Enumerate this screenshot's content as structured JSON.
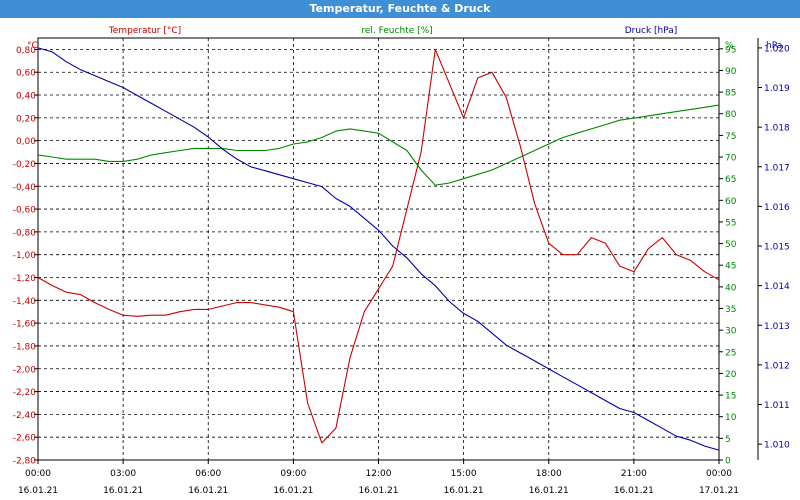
{
  "window": {
    "title": "Temperatur, Feuchte & Druck"
  },
  "chart_data": {
    "type": "line",
    "title": "Temperatur, Feuchte & Druck",
    "grid": true,
    "x_ticks": [
      {
        "time": "00:00",
        "date": "16.01.21"
      },
      {
        "time": "03:00",
        "date": "16.01.21"
      },
      {
        "time": "06:00",
        "date": "16.01.21"
      },
      {
        "time": "09:00",
        "date": "16.01.21"
      },
      {
        "time": "12:00",
        "date": "16.01.21"
      },
      {
        "time": "15:00",
        "date": "16.01.21"
      },
      {
        "time": "18:00",
        "date": "16.01.21"
      },
      {
        "time": "21:00",
        "date": "16.01.21"
      },
      {
        "time": "00:00",
        "date": "17.01.21"
      }
    ],
    "x_hours": [
      0,
      0.5,
      1,
      1.5,
      2,
      2.5,
      3,
      3.5,
      4,
      4.5,
      5,
      5.5,
      6,
      6.5,
      7,
      7.5,
      8,
      8.5,
      9,
      9.5,
      10,
      10.5,
      11,
      11.5,
      12,
      12.5,
      13,
      13.5,
      14,
      14.5,
      15,
      15.5,
      16,
      16.5,
      17,
      17.5,
      18,
      18.5,
      19,
      19.5,
      20,
      20.5,
      21,
      21.5,
      22,
      22.5,
      23,
      23.5,
      24
    ],
    "axes": {
      "temperature": {
        "label": "°C",
        "min": -2.8,
        "max": 0.9,
        "color": "#cc0000",
        "ticks": [
          "0,80",
          "0,60",
          "0,40",
          "0,20",
          "0,00",
          "-0,20",
          "-0,40",
          "-0,60",
          "-0,80",
          "-1,00",
          "-1,20",
          "-1,40",
          "-1,60",
          "-1,80",
          "-2,00",
          "-2,20",
          "-2,40",
          "-2,60",
          "-2,80"
        ],
        "tick_values": [
          0.8,
          0.6,
          0.4,
          0.2,
          0,
          -0.2,
          -0.4,
          -0.6,
          -0.8,
          -1.0,
          -1.2,
          -1.4,
          -1.6,
          -1.8,
          -2.0,
          -2.2,
          -2.4,
          -2.6,
          -2.8
        ]
      },
      "humidity": {
        "label": "%",
        "min": 0,
        "max": 97.5,
        "color": "#008800",
        "ticks": [
          "95",
          "90",
          "85",
          "80",
          "75",
          "70",
          "65",
          "60",
          "55",
          "50",
          "45",
          "40",
          "35",
          "30",
          "25",
          "20",
          "15",
          "10",
          "5",
          "0"
        ],
        "tick_values": [
          95,
          90,
          85,
          80,
          75,
          70,
          65,
          60,
          55,
          50,
          45,
          40,
          35,
          30,
          25,
          20,
          15,
          10,
          5,
          0
        ]
      },
      "pressure": {
        "label": "hPa",
        "min": 1009.6,
        "max": 1020.25,
        "color": "#0000aa",
        "ticks": [
          "1.020",
          "1.019",
          "1.018",
          "1.017",
          "1.016",
          "1.015",
          "1.014",
          "1.013",
          "1.012",
          "1.011",
          "1.010"
        ],
        "tick_values": [
          1020,
          1019,
          1018,
          1017,
          1016,
          1015,
          1014,
          1013,
          1012,
          1011,
          1010
        ]
      }
    },
    "series": [
      {
        "name": "Temperatur [°C]",
        "axis": "temperature",
        "color": "#cc0000",
        "values": [
          -1.2,
          -1.27,
          -1.33,
          -1.35,
          -1.42,
          -1.48,
          -1.53,
          -1.54,
          -1.53,
          -1.53,
          -1.5,
          -1.48,
          -1.48,
          -1.45,
          -1.42,
          -1.42,
          -1.44,
          -1.46,
          -1.5,
          -2.3,
          -2.65,
          -2.52,
          -1.9,
          -1.5,
          -1.3,
          -1.1,
          -0.6,
          -0.1,
          0.8,
          0.5,
          0.2,
          0.55,
          0.6,
          0.38,
          -0.05,
          -0.55,
          -0.9,
          -1.0,
          -1.0,
          -0.85,
          -0.9,
          -1.1,
          -1.15,
          -0.95,
          -0.85,
          -1.0,
          -1.05,
          -1.15,
          -1.22
        ]
      },
      {
        "name": "rel. Feuchte [%]",
        "axis": "humidity",
        "color": "#008800",
        "values": [
          70.5,
          70,
          69.5,
          69.5,
          69.5,
          69,
          69,
          69.5,
          70.5,
          71,
          71.5,
          72,
          72,
          72,
          71.5,
          71.5,
          71.5,
          72,
          73,
          73.5,
          74.5,
          76,
          76.5,
          76,
          75.5,
          73.5,
          71.5,
          67,
          63.5,
          64,
          65,
          66,
          67,
          68.5,
          70,
          71.5,
          73,
          74.5,
          75.5,
          76.5,
          77.5,
          78.5,
          79,
          79.5,
          80,
          80.5,
          81,
          81.5,
          82
        ]
      },
      {
        "name": "Druck [hPa]",
        "axis": "pressure",
        "color": "#0000aa",
        "values": [
          1020.0,
          1019.9,
          1019.65,
          1019.45,
          1019.3,
          1019.15,
          1019.0,
          1018.8,
          1018.6,
          1018.4,
          1018.2,
          1018.0,
          1017.75,
          1017.45,
          1017.2,
          1017.0,
          1016.9,
          1016.8,
          1016.7,
          1016.6,
          1016.5,
          1016.2,
          1016.0,
          1015.7,
          1015.4,
          1015.0,
          1014.7,
          1014.3,
          1014.0,
          1013.6,
          1013.3,
          1013.1,
          1012.8,
          1012.5,
          1012.3,
          1012.1,
          1011.9,
          1011.7,
          1011.5,
          1011.3,
          1011.1,
          1010.9,
          1010.8,
          1010.6,
          1010.4,
          1010.2,
          1010.1,
          1009.95,
          1009.85
        ]
      }
    ],
    "legend": [
      {
        "label": "Temperatur [°C]",
        "color": "#cc0000",
        "placement": "top-left"
      },
      {
        "label": "rel. Feuchte [%]",
        "color": "#008800",
        "placement": "top-center"
      },
      {
        "label": "Druck [hPa]",
        "color": "#0000aa",
        "placement": "top-right"
      }
    ]
  }
}
